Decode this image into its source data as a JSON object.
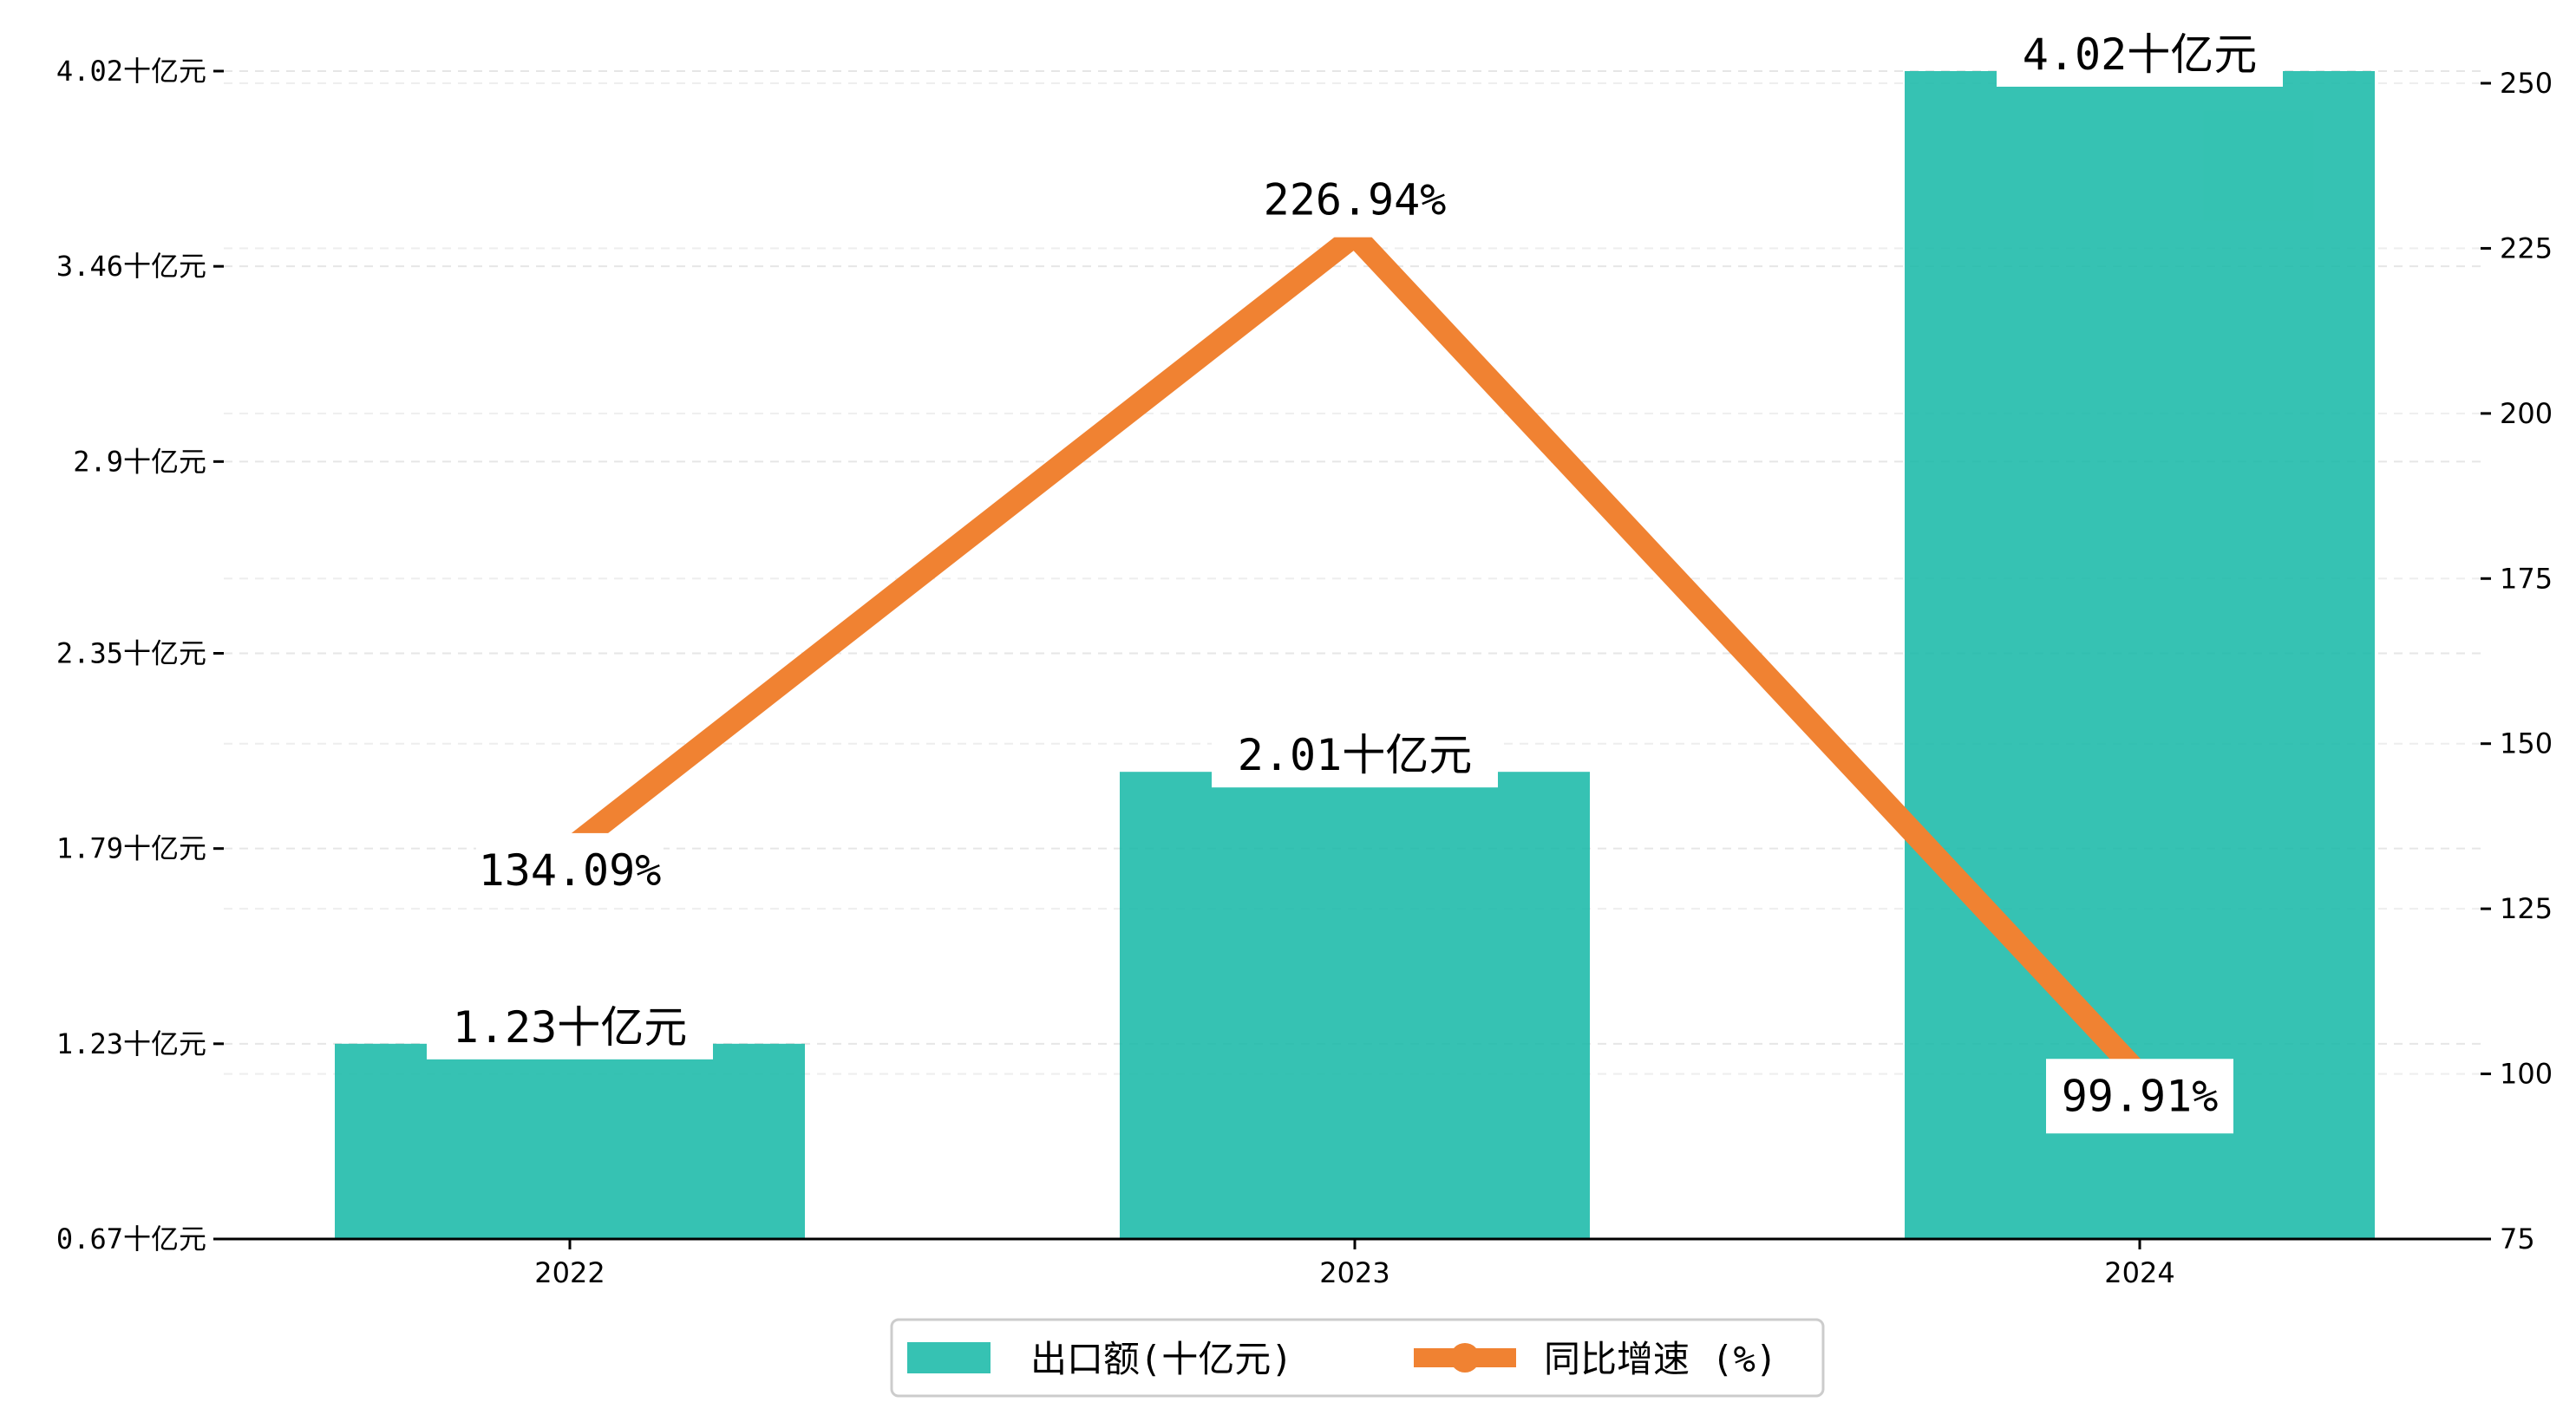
{
  "chart_data": {
    "type": "bar",
    "title": "",
    "xlabel": "",
    "ylabel": "",
    "categories": [
      "2022",
      "2023",
      "2024"
    ],
    "series": [
      {
        "name": "出口额(十亿元)",
        "type": "bar",
        "axis": "left",
        "values": [
          1.23,
          2.01,
          4.02
        ],
        "labels": [
          "1.23十亿元",
          "2.01十亿元",
          "4.02十亿元"
        ],
        "color": "#1ABAA8"
      },
      {
        "name": "同比增速 (%)",
        "type": "line",
        "axis": "right",
        "values": [
          134.09,
          226.94,
          99.91
        ],
        "labels": [
          "134.09%",
          "226.94%",
          "99.91%"
        ],
        "color": "#F08232"
      }
    ],
    "y_left": {
      "ylim": [
        0.67,
        4.02
      ],
      "ticks": [
        0.67,
        1.23,
        1.79,
        2.35,
        2.9,
        3.46,
        4.02
      ],
      "tick_labels": [
        "0.67十亿元",
        "1.23十亿元",
        "1.79十亿元",
        "2.35十亿元",
        "2.9十亿元",
        "3.46十亿元",
        "4.02十亿元"
      ]
    },
    "y_right": {
      "ylim": [
        75,
        250
      ],
      "ticks": [
        75,
        100,
        125,
        150,
        175,
        200,
        225,
        250
      ],
      "tick_labels": [
        "75",
        "100",
        "125",
        "150",
        "175",
        "200",
        "225",
        "250"
      ]
    },
    "grid": true,
    "legend_position": "bottom-center"
  }
}
